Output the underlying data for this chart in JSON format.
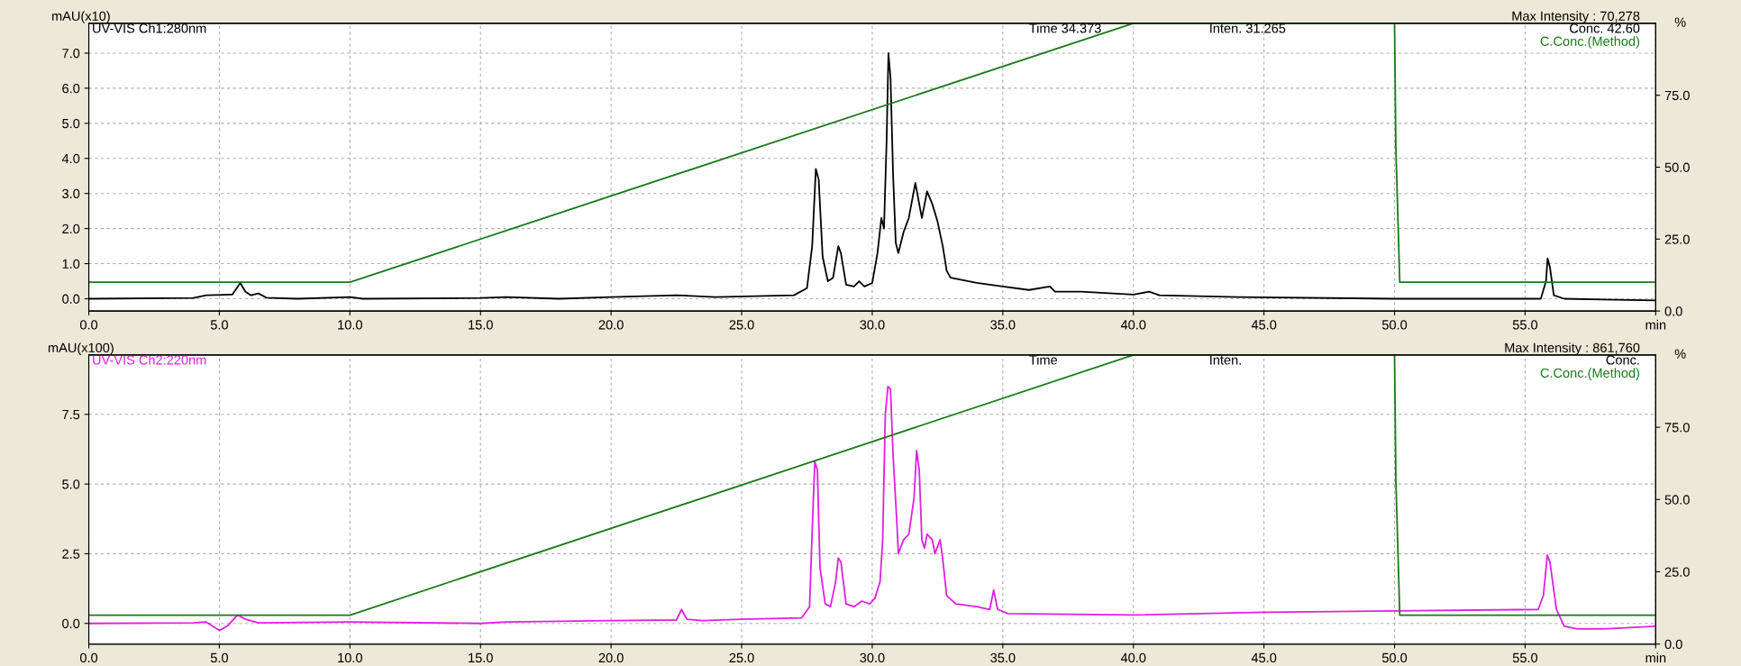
{
  "chart_data": [
    {
      "type": "line",
      "ylabel": "mAU(x10)",
      "y2label": "%",
      "xlim": [
        0,
        60
      ],
      "ylim": [
        -0.35,
        7.85
      ],
      "y2lim": [
        0,
        100
      ],
      "xticks": [
        {
          "value": 0,
          "label": "0.0"
        },
        {
          "value": 5,
          "label": "5.0"
        },
        {
          "value": 10,
          "label": "10.0"
        },
        {
          "value": 15,
          "label": "15.0"
        },
        {
          "value": 20,
          "label": "20.0"
        },
        {
          "value": 25,
          "label": "25.0"
        },
        {
          "value": 30,
          "label": "30.0"
        },
        {
          "value": 35,
          "label": "35.0"
        },
        {
          "value": 40,
          "label": "40.0"
        },
        {
          "value": 45,
          "label": "45.0"
        },
        {
          "value": 50,
          "label": "50.0"
        },
        {
          "value": 55,
          "label": "55.0"
        },
        {
          "value": 60,
          "label": "min"
        }
      ],
      "yticks": [
        {
          "value": 0,
          "label": "0.0"
        },
        {
          "value": 1,
          "label": "1.0"
        },
        {
          "value": 2,
          "label": "2.0"
        },
        {
          "value": 3,
          "label": "3.0"
        },
        {
          "value": 4,
          "label": "4.0"
        },
        {
          "value": 5,
          "label": "5.0"
        },
        {
          "value": 6,
          "label": "6.0"
        },
        {
          "value": 7,
          "label": "7.0"
        }
      ],
      "y2ticks": [
        {
          "value": 0,
          "label": "0.0"
        },
        {
          "value": 25,
          "label": "25.0"
        },
        {
          "value": 50,
          "label": "50.0"
        },
        {
          "value": 75,
          "label": "75.0"
        }
      ],
      "grid": true,
      "annotations": [
        "Time 34.373",
        "Inten. 31.265",
        "Conc. 42.60",
        "Max Intensity : 70,278"
      ],
      "series": [
        {
          "name": "UV-VIS Ch1:280nm",
          "color": "#000000",
          "x": [
            0,
            4.0,
            4.5,
            5.5,
            5.8,
            6.0,
            6.2,
            6.5,
            6.8,
            8,
            10,
            10.5,
            15,
            16,
            18,
            20,
            22.5,
            24,
            27,
            27.5,
            27.7,
            27.84,
            27.95,
            28.1,
            28.3,
            28.5,
            28.7,
            28.8,
            29.0,
            29.3,
            29.5,
            29.7,
            30.0,
            30.2,
            30.35,
            30.45,
            30.55,
            30.62,
            30.7,
            30.8,
            30.9,
            31.0,
            31.2,
            31.4,
            31.65,
            31.8,
            31.9,
            32.1,
            32.3,
            32.5,
            32.7,
            32.85,
            33.0,
            34,
            35,
            36,
            36.8,
            37.0,
            38,
            40,
            40.6,
            41,
            44,
            50,
            55.6,
            55.8,
            55.86,
            55.95,
            56.1,
            56.5,
            60
          ],
          "values": [
            0,
            0.02,
            0.1,
            0.12,
            0.45,
            0.2,
            0.1,
            0.15,
            0.03,
            0,
            0.05,
            0,
            0.02,
            0.05,
            0,
            0.05,
            0.1,
            0.05,
            0.1,
            0.3,
            1.5,
            3.7,
            3.4,
            1.2,
            0.5,
            0.6,
            1.5,
            1.3,
            0.4,
            0.35,
            0.5,
            0.35,
            0.45,
            1.3,
            2.3,
            2.0,
            4.5,
            7.0,
            6.3,
            3.5,
            1.6,
            1.3,
            1.9,
            2.3,
            3.3,
            2.7,
            2.3,
            3.06,
            2.7,
            2.2,
            1.5,
            0.8,
            0.6,
            0.45,
            0.35,
            0.25,
            0.35,
            0.2,
            0.2,
            0.12,
            0.2,
            0.1,
            0.05,
            0,
            0,
            0.5,
            1.15,
            0.9,
            0.1,
            0,
            -0.05
          ]
        },
        {
          "name": "C.Conc.(Method)",
          "color": "#1a7a1a",
          "axis": "y2",
          "x": [
            0,
            10,
            40,
            50,
            50.05,
            50.2,
            60
          ],
          "values": [
            10,
            10,
            100,
            100,
            57,
            10,
            10
          ]
        }
      ]
    },
    {
      "type": "line",
      "ylabel": "mAU(x100)",
      "y2label": "%",
      "xlim": [
        0,
        60
      ],
      "ylim": [
        -0.74,
        9.63
      ],
      "y2lim": [
        0,
        100
      ],
      "xticks": [
        {
          "value": 0,
          "label": "0.0"
        },
        {
          "value": 5,
          "label": "5.0"
        },
        {
          "value": 10,
          "label": "10.0"
        },
        {
          "value": 15,
          "label": "15.0"
        },
        {
          "value": 20,
          "label": "20.0"
        },
        {
          "value": 25,
          "label": "25.0"
        },
        {
          "value": 30,
          "label": "30.0"
        },
        {
          "value": 35,
          "label": "35.0"
        },
        {
          "value": 40,
          "label": "40.0"
        },
        {
          "value": 45,
          "label": "45.0"
        },
        {
          "value": 50,
          "label": "50.0"
        },
        {
          "value": 55,
          "label": "55.0"
        },
        {
          "value": 60,
          "label": "min"
        }
      ],
      "yticks": [
        {
          "value": 0,
          "label": "0.0"
        },
        {
          "value": 2.5,
          "label": "2.5"
        },
        {
          "value": 5,
          "label": "5.0"
        },
        {
          "value": 7.5,
          "label": "7.5"
        }
      ],
      "y2ticks": [
        {
          "value": 0,
          "label": "0.0"
        },
        {
          "value": 25,
          "label": "25.0"
        },
        {
          "value": 50,
          "label": "50.0"
        },
        {
          "value": 75,
          "label": "75.0"
        }
      ],
      "grid": true,
      "annotations": [
        "Time",
        "Inten.",
        "Conc.",
        "Max Intensity : 861,760"
      ],
      "series": [
        {
          "name": "UV-VIS Ch2:220nm",
          "color": "#e020e0",
          "x": [
            0,
            4.0,
            4.5,
            5.0,
            5.3,
            5.7,
            6.0,
            6.5,
            10,
            15,
            16,
            20,
            22.5,
            22.7,
            22.9,
            23.5,
            25,
            27.3,
            27.6,
            27.7,
            27.8,
            27.9,
            28.0,
            28.2,
            28.4,
            28.6,
            28.7,
            28.8,
            29.0,
            29.3,
            29.6,
            29.9,
            30.1,
            30.3,
            30.4,
            30.5,
            30.6,
            30.7,
            30.8,
            30.95,
            31.0,
            31.2,
            31.4,
            31.6,
            31.7,
            31.8,
            31.9,
            32.0,
            32.1,
            32.3,
            32.4,
            32.6,
            32.7,
            32.85,
            33.2,
            34,
            34.5,
            34.65,
            34.8,
            35.2,
            40,
            45,
            50,
            55.5,
            55.7,
            55.85,
            55.95,
            56.2,
            56.5,
            57,
            58,
            60
          ],
          "values": [
            0,
            0.02,
            0.05,
            -0.25,
            -0.1,
            0.3,
            0.15,
            0.02,
            0.05,
            0,
            0.05,
            0.1,
            0.12,
            0.5,
            0.15,
            0.1,
            0.15,
            0.2,
            0.6,
            3.3,
            5.8,
            5.5,
            2.0,
            0.7,
            0.6,
            1.5,
            2.35,
            2.2,
            0.7,
            0.6,
            0.8,
            0.7,
            0.9,
            1.5,
            3.0,
            7.5,
            8.5,
            8.4,
            6.0,
            3.5,
            2.5,
            3.0,
            3.2,
            4.5,
            6.2,
            5.5,
            3.0,
            2.7,
            3.2,
            3.0,
            2.5,
            3.0,
            2.3,
            1.0,
            0.7,
            0.6,
            0.5,
            1.2,
            0.5,
            0.35,
            0.3,
            0.4,
            0.45,
            0.5,
            1.0,
            2.45,
            2.2,
            0.5,
            -0.1,
            -0.2,
            -0.2,
            -0.1
          ]
        },
        {
          "name": "C.Conc.(Method)",
          "color": "#1a7a1a",
          "axis": "y2",
          "x": [
            0,
            10,
            40,
            50,
            50.05,
            50.2,
            60
          ],
          "values": [
            10,
            10,
            100,
            100,
            57,
            10,
            10
          ]
        }
      ]
    }
  ]
}
